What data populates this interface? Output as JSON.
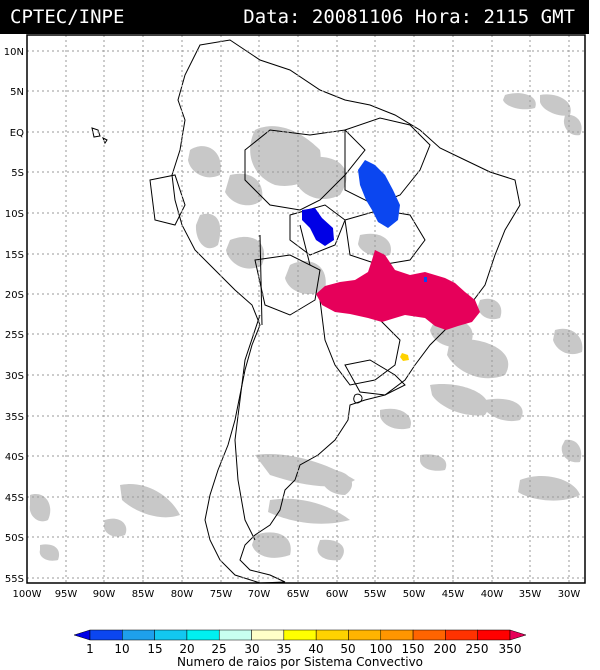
{
  "header": {
    "org": "CPTEC/INPE",
    "stamp": "Data: 20081106 Hora: 2115 GMT"
  },
  "map": {
    "lat_labels": [
      "10N",
      "5N",
      "EQ",
      "5S",
      "10S",
      "15S",
      "20S",
      "25S",
      "30S",
      "35S",
      "40S",
      "45S",
      "50S",
      "55S"
    ],
    "lon_labels": [
      "100W",
      "95W",
      "90W",
      "85W",
      "80W",
      "75W",
      "70W",
      "65W",
      "60W",
      "55W",
      "50W",
      "45W",
      "40W",
      "35W",
      "30W"
    ],
    "colors": {
      "cloud": "#c8c8c8",
      "border": "#000000",
      "grid": "#9a9a9a"
    }
  },
  "colorbar": {
    "ticks": [
      "1",
      "10",
      "15",
      "20",
      "25",
      "30",
      "35",
      "40",
      "50",
      "100",
      "150",
      "200",
      "250",
      "350"
    ],
    "colors": [
      "#0000e6",
      "#0b46f0",
      "#1ea0ec",
      "#12c8f0",
      "#00f0f0",
      "#c8fff0",
      "#ffffc8",
      "#ffff00",
      "#ffd200",
      "#ffb400",
      "#ff9600",
      "#ff6400",
      "#ff3200",
      "#ff0000",
      "#e6005a"
    ],
    "caption": "Numero de raios por Sistema Convectivo"
  }
}
